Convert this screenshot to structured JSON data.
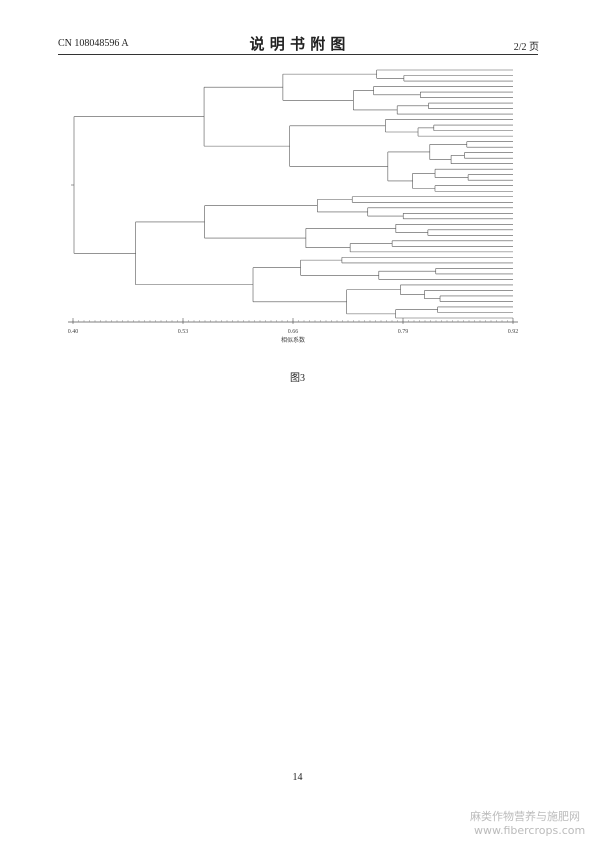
{
  "header": {
    "doc_number": "CN 108048596 A",
    "title": "说 明 书 附 图",
    "page_of": "2/2 页"
  },
  "figure": {
    "axis_ticks": [
      {
        "value": 0.4,
        "label": "0.40"
      },
      {
        "value": 0.53,
        "label": "0.53"
      },
      {
        "value": 0.66,
        "label": "0.66"
      },
      {
        "value": 0.79,
        "label": "0.79"
      },
      {
        "value": 0.92,
        "label": "0.92"
      }
    ],
    "axis_label": "相似系数",
    "caption": "图3"
  },
  "footer": {
    "page_number": "14",
    "watermark_cn": "麻类作物营养与施肥网",
    "watermark_url": "www.fibercrops.com"
  }
}
